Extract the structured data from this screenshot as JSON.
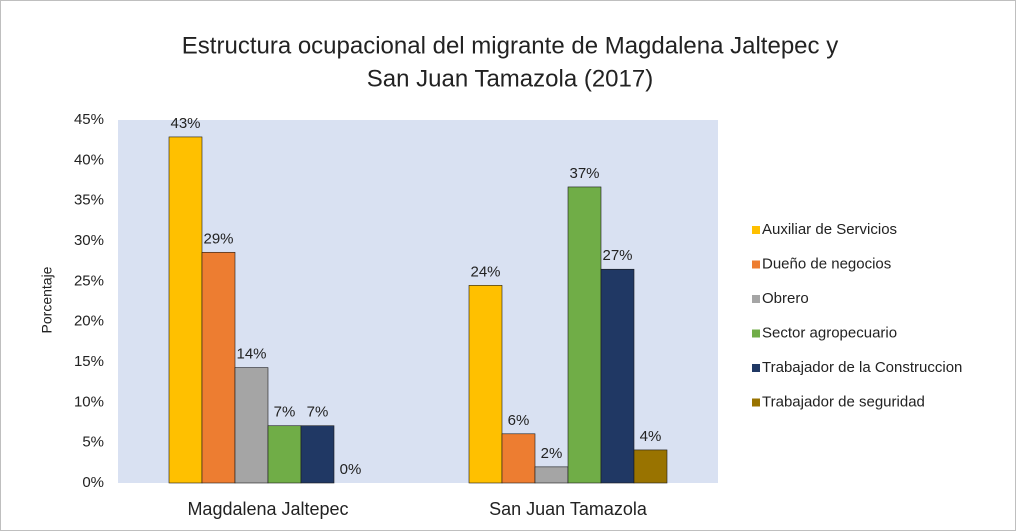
{
  "chart_data": {
    "type": "bar",
    "title": [
      "Estructura ocupacional del migrante de Magdalena Jaltepec y",
      "San Juan Tamazola  (2017)"
    ],
    "y_label": "Porcentaje",
    "categories": [
      "Magdalena Jaltepec",
      "San Juan Tamazola"
    ],
    "series": [
      {
        "name": "Auxiliar de Servicios",
        "color": "#ffc000",
        "values": [
          42.9,
          24.5
        ],
        "value_labels": [
          "43%",
          "24%"
        ]
      },
      {
        "name": "Dueño de negocios",
        "color": "#ed7d31",
        "values": [
          28.6,
          6.1
        ],
        "value_labels": [
          "29%",
          "6%"
        ]
      },
      {
        "name": "Obrero",
        "color": "#a5a5a5",
        "values": [
          14.3,
          2.0
        ],
        "value_labels": [
          "14%",
          "2%"
        ]
      },
      {
        "name": "Sector agropecuario",
        "color": "#70ad47",
        "values": [
          7.1,
          36.7
        ],
        "value_labels": [
          "7%",
          "37%"
        ]
      },
      {
        "name": "Trabajador de la Construccion",
        "color": "#203864",
        "values": [
          7.1,
          26.5
        ],
        "value_labels": [
          "7%",
          "27%"
        ]
      },
      {
        "name": "Trabajador de seguridad",
        "color": "#997300",
        "values": [
          0,
          4.1
        ],
        "value_labels": [
          "0%",
          "4%"
        ]
      }
    ],
    "ylim": [
      0,
      45
    ],
    "yticks": [
      {
        "value": 0,
        "label": "0%"
      },
      {
        "value": 5,
        "label": "5%"
      },
      {
        "value": 10,
        "label": "10%"
      },
      {
        "value": 15,
        "label": "15%"
      },
      {
        "value": 20,
        "label": "20%"
      },
      {
        "value": 25,
        "label": "25%"
      },
      {
        "value": 30,
        "label": "30%"
      },
      {
        "value": 35,
        "label": "35%"
      },
      {
        "value": 40,
        "label": "40%"
      },
      {
        "value": 45,
        "label": "45%"
      }
    ],
    "legend": "right"
  }
}
